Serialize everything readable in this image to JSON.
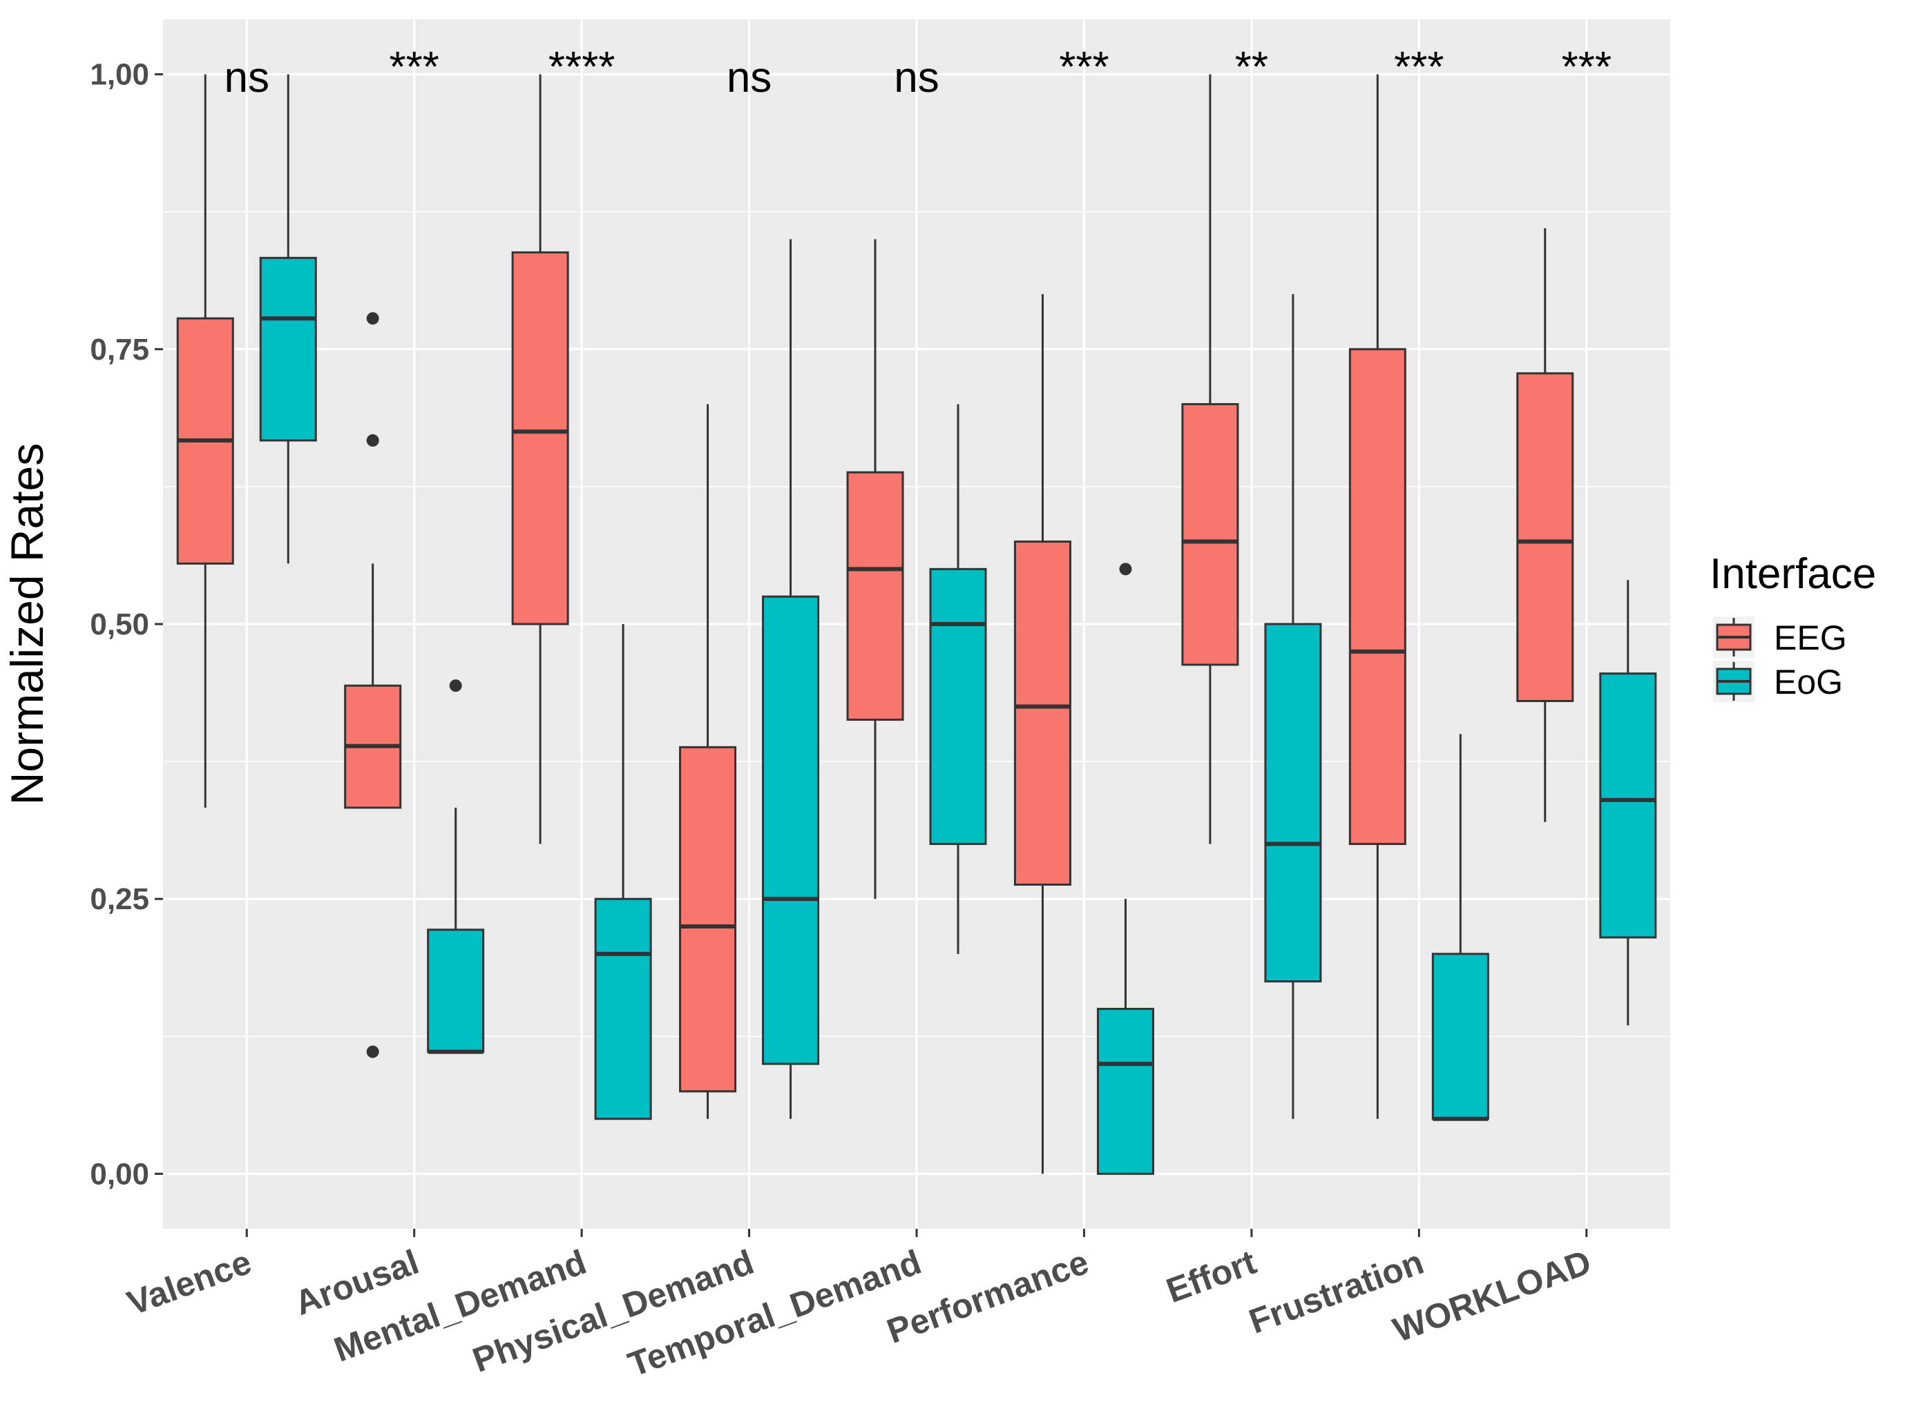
{
  "chart_data": {
    "type": "boxplot",
    "title": "",
    "xlabel": "",
    "ylabel": "Normalized Rates",
    "ylim": [
      -0.05,
      1.05
    ],
    "yticks": [
      0,
      0.25,
      0.5,
      0.75,
      1.0
    ],
    "ytick_labels": [
      "0,00",
      "0,25",
      "0,50",
      "0,75",
      "1,00"
    ],
    "categories": [
      "Valence",
      "Arousal",
      "Mental_Demand",
      "Physical_Demand",
      "Temporal_Demand",
      "Performance",
      "Effort",
      "Frustration",
      "WORKLOAD"
    ],
    "significance": [
      "ns",
      "***",
      "****",
      "ns",
      "ns",
      "***",
      "**",
      "***",
      "***"
    ],
    "legend": {
      "title": "Interface",
      "position": "right"
    },
    "series": [
      {
        "name": "EEG",
        "color": "#F8766D",
        "boxes": [
          {
            "min": 0.333,
            "q1": 0.555,
            "median": 0.667,
            "q3": 0.778,
            "max": 1.0,
            "outliers": []
          },
          {
            "min": 0.333,
            "q1": 0.333,
            "median": 0.389,
            "q3": 0.444,
            "max": 0.555,
            "outliers": [
              0.778,
              0.667,
              0.111
            ]
          },
          {
            "min": 0.3,
            "q1": 0.5,
            "median": 0.675,
            "q3": 0.838,
            "max": 1.0,
            "outliers": []
          },
          {
            "min": 0.05,
            "q1": 0.075,
            "median": 0.225,
            "q3": 0.388,
            "max": 0.7,
            "outliers": []
          },
          {
            "min": 0.25,
            "q1": 0.413,
            "median": 0.55,
            "q3": 0.638,
            "max": 0.85,
            "outliers": []
          },
          {
            "min": 0.0,
            "q1": 0.263,
            "median": 0.425,
            "q3": 0.575,
            "max": 0.8,
            "outliers": []
          },
          {
            "min": 0.3,
            "q1": 0.463,
            "median": 0.575,
            "q3": 0.7,
            "max": 1.0,
            "outliers": []
          },
          {
            "min": 0.05,
            "q1": 0.3,
            "median": 0.475,
            "q3": 0.75,
            "max": 1.0,
            "outliers": []
          },
          {
            "min": 0.32,
            "q1": 0.43,
            "median": 0.575,
            "q3": 0.728,
            "max": 0.86,
            "outliers": []
          }
        ]
      },
      {
        "name": "EoG",
        "color": "#00BFC4",
        "boxes": [
          {
            "min": 0.555,
            "q1": 0.667,
            "median": 0.778,
            "q3": 0.833,
            "max": 1.0,
            "outliers": []
          },
          {
            "min": 0.111,
            "q1": 0.111,
            "median": 0.111,
            "q3": 0.222,
            "max": 0.333,
            "outliers": [
              0.444
            ]
          },
          {
            "min": 0.05,
            "q1": 0.05,
            "median": 0.2,
            "q3": 0.25,
            "max": 0.5,
            "outliers": []
          },
          {
            "min": 0.05,
            "q1": 0.1,
            "median": 0.25,
            "q3": 0.525,
            "max": 0.85,
            "outliers": []
          },
          {
            "min": 0.2,
            "q1": 0.3,
            "median": 0.5,
            "q3": 0.55,
            "max": 0.7,
            "outliers": []
          },
          {
            "min": 0.0,
            "q1": 0.0,
            "median": 0.1,
            "q3": 0.15,
            "max": 0.25,
            "outliers": [
              0.55
            ]
          },
          {
            "min": 0.05,
            "q1": 0.175,
            "median": 0.3,
            "q3": 0.5,
            "max": 0.8,
            "outliers": []
          },
          {
            "min": 0.05,
            "q1": 0.05,
            "median": 0.05,
            "q3": 0.2,
            "max": 0.4,
            "outliers": []
          },
          {
            "min": 0.135,
            "q1": 0.215,
            "median": 0.34,
            "q3": 0.455,
            "max": 0.54,
            "outliers": []
          }
        ]
      }
    ]
  }
}
